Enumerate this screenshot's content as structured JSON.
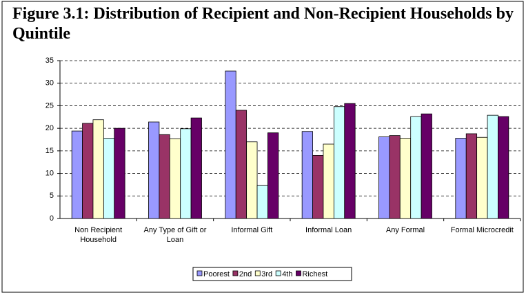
{
  "chart_data": {
    "type": "bar",
    "title": "Figure 3.1:  Distribution of Recipient and Non-Recipient Households by Quintile",
    "categories": [
      "Non Recipient Household",
      "Any Type of Gift or Loan",
      "Informal Gift",
      "Informal Loan",
      "Any Formal",
      "Formal Microcredit"
    ],
    "series": [
      {
        "name": "Poorest",
        "color": "#9999ff",
        "values": [
          19.4,
          21.4,
          32.7,
          19.3,
          18.1,
          17.8
        ]
      },
      {
        "name": "2nd",
        "color": "#993366",
        "values": [
          21.1,
          18.6,
          24.0,
          14.0,
          18.4,
          18.8
        ]
      },
      {
        "name": "3rd",
        "color": "#ffffcc",
        "values": [
          21.9,
          17.7,
          17.0,
          16.5,
          17.8,
          18.0
        ]
      },
      {
        "name": "4th",
        "color": "#ccffff",
        "values": [
          17.8,
          19.9,
          7.3,
          24.8,
          22.6,
          22.9
        ]
      },
      {
        "name": "Richest",
        "color": "#660066",
        "values": [
          20.0,
          22.3,
          19.0,
          25.5,
          23.2,
          22.6
        ]
      }
    ],
    "ylim": [
      0,
      35
    ],
    "yticks": [
      0,
      5,
      10,
      15,
      20,
      25,
      30,
      35
    ],
    "grid": true,
    "legend": "bottom"
  }
}
